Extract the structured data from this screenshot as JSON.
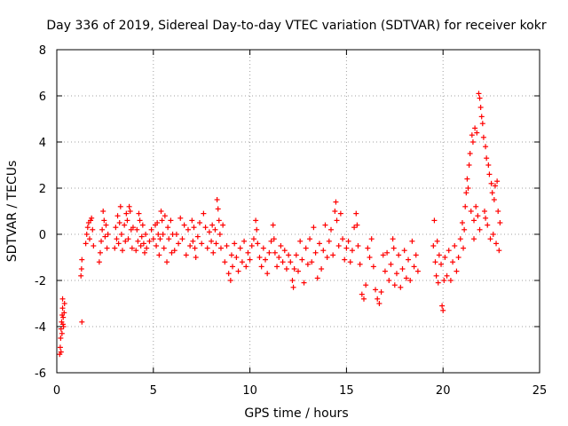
{
  "colors": {
    "series": "#ff0000",
    "grid": "#a0a0a0",
    "axis": "#000000"
  },
  "chart_data": {
    "type": "scatter",
    "title": "Day 336 of 2019, Sidereal Day-to-day VTEC variation (SDTVAR) for receiver kokr",
    "xlabel": "GPS time / hours",
    "ylabel": "SDTVAR / TECUs",
    "xlim": [
      0,
      25
    ],
    "ylim": [
      -6,
      8
    ],
    "xticks": [
      0,
      5,
      10,
      15,
      20,
      25
    ],
    "yticks": [
      -6,
      -4,
      -2,
      0,
      2,
      4,
      6,
      8
    ],
    "grid": true,
    "marker": "plus",
    "series": [
      {
        "name": "SDTVAR",
        "points": [
          [
            0.15,
            -5.2
          ],
          [
            0.18,
            -4.9
          ],
          [
            0.2,
            -4.5
          ],
          [
            0.22,
            -4.1
          ],
          [
            0.25,
            -3.8
          ],
          [
            0.28,
            -3.5
          ],
          [
            0.3,
            -3.2
          ],
          [
            0.3,
            -2.8
          ],
          [
            0.33,
            -3.6
          ],
          [
            0.35,
            -4.0
          ],
          [
            0.38,
            -3.4
          ],
          [
            0.4,
            -3.0
          ],
          [
            0.22,
            -5.1
          ],
          [
            0.27,
            -4.3
          ],
          [
            0.32,
            -3.9
          ],
          [
            1.25,
            -1.8
          ],
          [
            1.28,
            -1.5
          ],
          [
            1.3,
            -1.1
          ],
          [
            1.3,
            -3.8
          ],
          [
            1.5,
            -0.4
          ],
          [
            1.55,
            0.0
          ],
          [
            1.6,
            0.3
          ],
          [
            1.65,
            0.5
          ],
          [
            1.7,
            -0.2
          ],
          [
            1.75,
            0.6
          ],
          [
            1.8,
            0.7
          ],
          [
            1.85,
            0.2
          ],
          [
            1.9,
            -0.5
          ],
          [
            2.2,
            -1.2
          ],
          [
            2.25,
            -0.8
          ],
          [
            2.3,
            -0.3
          ],
          [
            2.35,
            0.2
          ],
          [
            2.4,
            1.0
          ],
          [
            2.45,
            0.6
          ],
          [
            2.5,
            -0.1
          ],
          [
            2.55,
            0.4
          ],
          [
            2.6,
            -0.6
          ],
          [
            2.65,
            0.0
          ],
          [
            3.0,
            -0.6
          ],
          [
            3.05,
            0.3
          ],
          [
            3.1,
            -0.2
          ],
          [
            3.15,
            0.8
          ],
          [
            3.2,
            -0.4
          ],
          [
            3.25,
            0.5
          ],
          [
            3.3,
            1.2
          ],
          [
            3.35,
            0.0
          ],
          [
            3.4,
            -0.7
          ],
          [
            3.5,
            0.4
          ],
          [
            3.55,
            -0.3
          ],
          [
            3.6,
            0.9
          ],
          [
            3.65,
            0.6
          ],
          [
            3.7,
            -0.2
          ],
          [
            3.75,
            1.2
          ],
          [
            3.8,
            1.0
          ],
          [
            3.85,
            0.2
          ],
          [
            3.9,
            -0.6
          ],
          [
            3.95,
            0.3
          ],
          [
            4.1,
            -0.7
          ],
          [
            4.15,
            0.2
          ],
          [
            4.2,
            -0.3
          ],
          [
            4.25,
            0.9
          ],
          [
            4.3,
            0.6
          ],
          [
            4.35,
            -0.5
          ],
          [
            4.4,
            -0.1
          ],
          [
            4.45,
            0.4
          ],
          [
            4.5,
            -0.4
          ],
          [
            4.55,
            -0.8
          ],
          [
            4.6,
            0.0
          ],
          [
            4.65,
            -0.6
          ],
          [
            4.8,
            -0.3
          ],
          [
            4.9,
            0.2
          ],
          [
            5.0,
            -0.2
          ],
          [
            5.1,
            0.4
          ],
          [
            5.15,
            -0.5
          ],
          [
            5.2,
            0.5
          ],
          [
            5.25,
            0.0
          ],
          [
            5.3,
            -0.9
          ],
          [
            5.35,
            -0.2
          ],
          [
            5.4,
            1.0
          ],
          [
            5.45,
            0.6
          ],
          [
            5.5,
            0.0
          ],
          [
            5.55,
            -0.6
          ],
          [
            5.6,
            0.8
          ],
          [
            5.7,
            -1.2
          ],
          [
            5.75,
            0.3
          ],
          [
            5.8,
            -0.2
          ],
          [
            5.9,
            0.6
          ],
          [
            5.95,
            -0.8
          ],
          [
            6.0,
            0.0
          ],
          [
            6.1,
            -0.7
          ],
          [
            6.2,
            0.0
          ],
          [
            6.3,
            -0.4
          ],
          [
            6.4,
            0.7
          ],
          [
            6.5,
            -0.2
          ],
          [
            6.6,
            0.4
          ],
          [
            6.7,
            -0.9
          ],
          [
            6.8,
            0.2
          ],
          [
            6.9,
            -0.5
          ],
          [
            7.0,
            0.6
          ],
          [
            7.05,
            -0.3
          ],
          [
            7.1,
            0.3
          ],
          [
            7.15,
            -0.6
          ],
          [
            7.2,
            -1.0
          ],
          [
            7.3,
            -0.1
          ],
          [
            7.4,
            0.5
          ],
          [
            7.5,
            -0.4
          ],
          [
            7.6,
            0.9
          ],
          [
            7.7,
            0.3
          ],
          [
            7.8,
            -0.6
          ],
          [
            7.9,
            0.1
          ],
          [
            8.0,
            -0.3
          ],
          [
            8.05,
            0.4
          ],
          [
            8.1,
            -0.8
          ],
          [
            8.2,
            0.2
          ],
          [
            8.25,
            -0.4
          ],
          [
            8.3,
            1.5
          ],
          [
            8.35,
            1.1
          ],
          [
            8.4,
            0.6
          ],
          [
            8.45,
            0.0
          ],
          [
            8.5,
            -0.6
          ],
          [
            8.6,
            0.4
          ],
          [
            8.7,
            -1.2
          ],
          [
            8.8,
            -0.5
          ],
          [
            8.9,
            -1.7
          ],
          [
            9.0,
            -2.0
          ],
          [
            9.05,
            -0.9
          ],
          [
            9.1,
            -1.4
          ],
          [
            9.2,
            -0.4
          ],
          [
            9.3,
            -1.0
          ],
          [
            9.4,
            -1.6
          ],
          [
            9.5,
            -0.6
          ],
          [
            9.6,
            -1.2
          ],
          [
            9.7,
            -0.3
          ],
          [
            9.8,
            -1.4
          ],
          [
            9.9,
            -0.8
          ],
          [
            10.0,
            -1.1
          ],
          [
            10.1,
            -0.5
          ],
          [
            10.2,
            -0.2
          ],
          [
            10.3,
            0.6
          ],
          [
            10.35,
            0.2
          ],
          [
            10.4,
            -0.4
          ],
          [
            10.5,
            -1.0
          ],
          [
            10.6,
            -1.4
          ],
          [
            10.7,
            -0.6
          ],
          [
            10.8,
            -1.1
          ],
          [
            10.9,
            -1.7
          ],
          [
            11.0,
            -0.8
          ],
          [
            11.1,
            -0.3
          ],
          [
            11.2,
            0.4
          ],
          [
            11.25,
            -0.2
          ],
          [
            11.3,
            -0.8
          ],
          [
            11.4,
            -1.4
          ],
          [
            11.5,
            -1.0
          ],
          [
            11.6,
            -0.5
          ],
          [
            11.7,
            -1.2
          ],
          [
            11.8,
            -0.7
          ],
          [
            11.9,
            -1.5
          ],
          [
            12.0,
            -0.9
          ],
          [
            12.1,
            -1.2
          ],
          [
            12.2,
            -2.0
          ],
          [
            12.25,
            -2.3
          ],
          [
            12.3,
            -1.5
          ],
          [
            12.4,
            -0.9
          ],
          [
            12.5,
            -1.6
          ],
          [
            12.6,
            -0.3
          ],
          [
            12.7,
            -1.1
          ],
          [
            12.8,
            -2.1
          ],
          [
            12.9,
            -0.6
          ],
          [
            13.0,
            -1.3
          ],
          [
            13.1,
            -0.2
          ],
          [
            13.2,
            -1.2
          ],
          [
            13.3,
            0.3
          ],
          [
            13.4,
            -0.8
          ],
          [
            13.5,
            -1.9
          ],
          [
            13.6,
            -0.4
          ],
          [
            13.7,
            -1.5
          ],
          [
            13.8,
            -0.7
          ],
          [
            13.9,
            0.4
          ],
          [
            14.0,
            -1.0
          ],
          [
            14.1,
            -0.3
          ],
          [
            14.2,
            0.2
          ],
          [
            14.3,
            -0.9
          ],
          [
            14.4,
            1.0
          ],
          [
            14.45,
            1.4
          ],
          [
            14.5,
            0.6
          ],
          [
            14.6,
            -0.5
          ],
          [
            14.7,
            0.9
          ],
          [
            14.8,
            -0.2
          ],
          [
            14.9,
            -1.1
          ],
          [
            15.0,
            -0.6
          ],
          [
            15.1,
            -0.3
          ],
          [
            15.2,
            -1.2
          ],
          [
            15.3,
            -0.7
          ],
          [
            15.4,
            0.3
          ],
          [
            15.5,
            0.9
          ],
          [
            15.55,
            0.4
          ],
          [
            15.6,
            -0.5
          ],
          [
            15.7,
            -1.3
          ],
          [
            15.8,
            -2.6
          ],
          [
            15.9,
            -2.8
          ],
          [
            16.0,
            -2.2
          ],
          [
            16.1,
            -0.6
          ],
          [
            16.2,
            -1.0
          ],
          [
            16.3,
            -0.2
          ],
          [
            16.4,
            -1.4
          ],
          [
            16.5,
            -2.4
          ],
          [
            16.6,
            -2.8
          ],
          [
            16.7,
            -3.0
          ],
          [
            16.8,
            -2.5
          ],
          [
            16.9,
            -0.9
          ],
          [
            17.0,
            -1.6
          ],
          [
            17.1,
            -0.8
          ],
          [
            17.2,
            -2.0
          ],
          [
            17.3,
            -1.3
          ],
          [
            17.4,
            -0.2
          ],
          [
            17.45,
            -0.6
          ],
          [
            17.5,
            -2.2
          ],
          [
            17.6,
            -1.7
          ],
          [
            17.7,
            -0.9
          ],
          [
            17.8,
            -2.3
          ],
          [
            17.9,
            -1.5
          ],
          [
            18.0,
            -0.7
          ],
          [
            18.1,
            -1.9
          ],
          [
            18.2,
            -1.1
          ],
          [
            18.3,
            -2.0
          ],
          [
            18.4,
            -0.3
          ],
          [
            18.5,
            -1.4
          ],
          [
            18.6,
            -0.9
          ],
          [
            18.7,
            -1.6
          ],
          [
            19.5,
            -0.5
          ],
          [
            19.55,
            0.6
          ],
          [
            19.6,
            -1.2
          ],
          [
            19.65,
            -1.8
          ],
          [
            19.7,
            -0.3
          ],
          [
            19.75,
            -2.1
          ],
          [
            19.8,
            -0.9
          ],
          [
            19.9,
            -1.3
          ],
          [
            19.95,
            -3.1
          ],
          [
            20.0,
            -3.3
          ],
          [
            20.05,
            -2.0
          ],
          [
            20.1,
            -1.0
          ],
          [
            20.2,
            -1.8
          ],
          [
            20.3,
            -0.7
          ],
          [
            20.4,
            -2.0
          ],
          [
            20.5,
            -1.2
          ],
          [
            20.6,
            -0.5
          ],
          [
            20.7,
            -1.6
          ],
          [
            20.8,
            -1.0
          ],
          [
            20.9,
            -0.2
          ],
          [
            21.0,
            0.5
          ],
          [
            21.05,
            -0.6
          ],
          [
            21.1,
            0.2
          ],
          [
            21.15,
            1.2
          ],
          [
            21.2,
            1.8
          ],
          [
            21.25,
            2.4
          ],
          [
            21.3,
            2.0
          ],
          [
            21.35,
            3.0
          ],
          [
            21.4,
            3.5
          ],
          [
            21.45,
            1.0
          ],
          [
            21.5,
            4.3
          ],
          [
            21.55,
            4.0
          ],
          [
            21.6,
            0.6
          ],
          [
            21.65,
            4.6
          ],
          [
            21.7,
            1.2
          ],
          [
            21.75,
            4.4
          ],
          [
            21.8,
            0.8
          ],
          [
            21.85,
            6.1
          ],
          [
            21.9,
            5.9
          ],
          [
            21.95,
            5.5
          ],
          [
            22.0,
            5.1
          ],
          [
            22.05,
            4.8
          ],
          [
            22.1,
            4.2
          ],
          [
            22.15,
            1.0
          ],
          [
            22.2,
            3.8
          ],
          [
            22.25,
            3.3
          ],
          [
            22.3,
            0.4
          ],
          [
            22.35,
            3.0
          ],
          [
            22.4,
            2.6
          ],
          [
            22.45,
            -0.2
          ],
          [
            22.5,
            2.2
          ],
          [
            22.55,
            1.8
          ],
          [
            22.6,
            0.0
          ],
          [
            22.65,
            1.5
          ],
          [
            22.7,
            2.1
          ],
          [
            22.75,
            -0.4
          ],
          [
            22.8,
            2.3
          ],
          [
            22.85,
            1.0
          ],
          [
            22.9,
            -0.7
          ],
          [
            22.95,
            0.5
          ],
          [
            22.2,
            0.7
          ],
          [
            21.9,
            0.2
          ],
          [
            21.6,
            -0.2
          ]
        ]
      }
    ]
  }
}
